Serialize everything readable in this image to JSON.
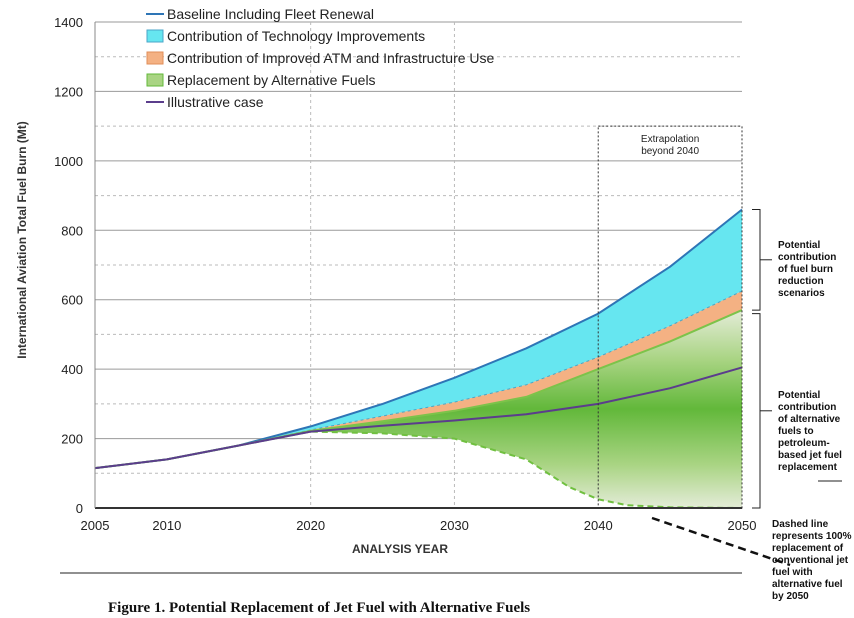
{
  "chart_data": {
    "type": "area",
    "xlabel": "ANALYSIS YEAR",
    "ylabel": "International Aviation Total Fuel Burn (Mt)",
    "xlim": [
      2005,
      2050
    ],
    "ylim": [
      0,
      1400
    ],
    "x_ticks": [
      2005,
      2010,
      2020,
      2030,
      2040,
      2050
    ],
    "y_ticks": [
      0,
      200,
      400,
      600,
      800,
      1000,
      1200,
      1400
    ],
    "grid": true,
    "legend_placement": "top-left",
    "legend": [
      "Baseline Including Fleet Renewal",
      "Contribution of Technology Improvements",
      "Contribution of Improved ATM and Infrastructure Use",
      "Replacement by Alternative Fuels",
      "Illustrative case"
    ],
    "colors": {
      "baseline": "#2e75b6",
      "technology": "#66e6f0",
      "atm": "#f4b183",
      "alt_fuel": "#70c040",
      "alt_fuel_light": "#e4ecd8",
      "illustrative": "#5b3d8c"
    },
    "series": [
      {
        "name": "Baseline Including Fleet Renewal",
        "x": [
          2005,
          2010,
          2015,
          2020,
          2025,
          2030,
          2035,
          2040,
          2045,
          2050
        ],
        "values": [
          115,
          140,
          180,
          235,
          300,
          375,
          460,
          560,
          695,
          860
        ]
      },
      {
        "name": "Contribution of Technology Improvements",
        "x": [
          2005,
          2010,
          2015,
          2020,
          2025,
          2030,
          2035,
          2040,
          2045,
          2050
        ],
        "values": [
          115,
          140,
          180,
          225,
          265,
          305,
          355,
          435,
          525,
          625
        ]
      },
      {
        "name": "Contribution of Improved ATM and Infrastructure Use",
        "x": [
          2005,
          2010,
          2015,
          2020,
          2025,
          2030,
          2035,
          2040,
          2045,
          2050
        ],
        "values": [
          115,
          140,
          180,
          222,
          250,
          280,
          320,
          400,
          480,
          570
        ]
      },
      {
        "name": "Replacement by Alternative Fuels",
        "x": [
          2005,
          2010,
          2015,
          2020,
          2025,
          2030,
          2035,
          2038,
          2040,
          2042,
          2045,
          2050
        ],
        "values": [
          115,
          140,
          180,
          220,
          215,
          200,
          140,
          60,
          25,
          8,
          2,
          0
        ]
      },
      {
        "name": "Illustrative case",
        "x": [
          2005,
          2010,
          2015,
          2020,
          2025,
          2030,
          2035,
          2040,
          2045,
          2050
        ],
        "values": [
          115,
          140,
          180,
          220,
          237,
          252,
          270,
          300,
          345,
          405
        ]
      }
    ],
    "annotations": {
      "extrapolation": [
        "Extrapolation",
        "beyond 2040"
      ],
      "fuel_burn_note": [
        "Potential",
        "contribution",
        "of fuel burn",
        "reduction",
        "scenarios"
      ],
      "alt_fuel_note": [
        "Potential",
        "contribution",
        "of alternative",
        "fuels to",
        "petroleum-",
        "based jet fuel",
        "replacement"
      ],
      "dashed_note": [
        "Dashed line",
        "represents 100%",
        "replacement of",
        "conventional jet",
        "fuel with",
        "alternative fuel",
        "by 2050"
      ]
    }
  },
  "caption": "Figure 1.  Potential Replacement of Jet Fuel with Alternative Fuels"
}
